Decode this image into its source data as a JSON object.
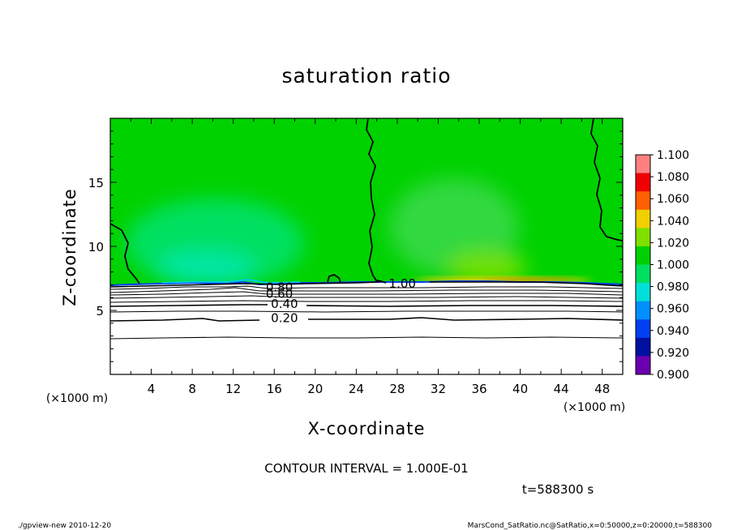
{
  "chart_data": {
    "type": "heatmap",
    "title": "saturation ratio",
    "xlabel": "X-coordinate",
    "ylabel": "Z-coordinate",
    "x_unit": "(×1000 m)",
    "y_unit": "(×1000 m)",
    "xlim": [
      0,
      50
    ],
    "ylim": [
      0,
      20
    ],
    "x_ticks": [
      4,
      8,
      12,
      16,
      20,
      24,
      28,
      32,
      36,
      40,
      44,
      48
    ],
    "y_ticks": [
      5,
      10,
      15
    ],
    "colorbar": {
      "levels": [
        0.9,
        0.92,
        0.94,
        0.96,
        0.98,
        1.0,
        1.02,
        1.04,
        1.06,
        1.08,
        1.1
      ],
      "labels": [
        "0.900",
        "0.920",
        "0.940",
        "0.960",
        "0.980",
        "1.000",
        "1.020",
        "1.040",
        "1.060",
        "1.080",
        "1.100"
      ],
      "colors": [
        "#6a00b0",
        "#0010a0",
        "#0040f0",
        "#0090ff",
        "#00e0d8",
        "#00e060",
        "#00d000",
        "#80e000",
        "#f0d000",
        "#ff6000",
        "#f00000",
        "#ff8080"
      ]
    },
    "contour_labels": [
      {
        "text": "0.20",
        "x": 17.0,
        "z": 4.4
      },
      {
        "text": "0.40",
        "x": 17.0,
        "z": 5.5
      },
      {
        "text": "0.60",
        "x": 16.5,
        "z": 6.3
      },
      {
        "text": "0.80",
        "x": 16.5,
        "z": 6.8
      },
      {
        "text": "1.00",
        "x": 28.5,
        "z": 7.1
      }
    ],
    "contour_interval": "CONTOUR INTERVAL = 1.000E-01",
    "time": "t=588300 s"
  },
  "footer": {
    "left": "./gpview-new   2010-12-20",
    "right": "MarsCond_SatRatio.nc@SatRatio,x=0:50000,z=0:20000,t=588300"
  },
  "colors": {
    "background": "#00d200",
    "lighter_region": "#00e060",
    "boundary": "#0040f0"
  }
}
